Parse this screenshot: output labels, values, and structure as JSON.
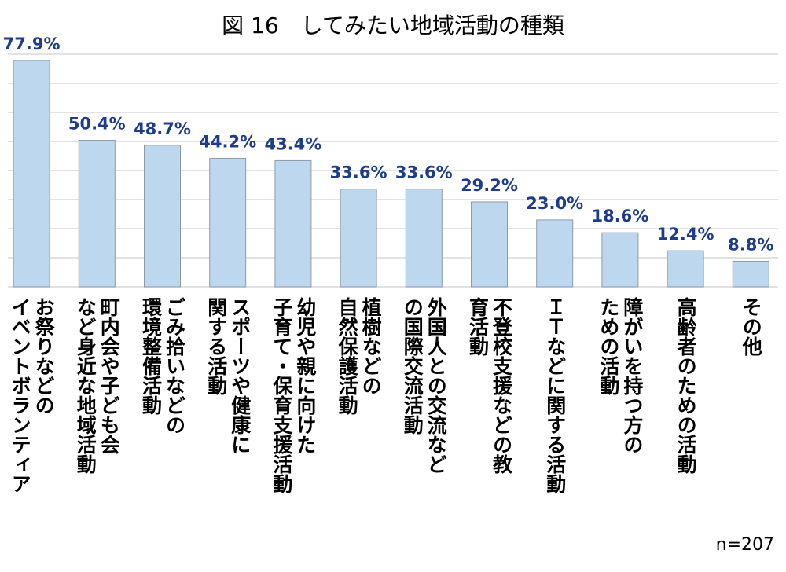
{
  "chart_data": {
    "type": "bar",
    "title": "図 16　してみたい地域活動の種類",
    "note": "n=207",
    "categories": [
      "お祭りなどの\nイベントボランティア",
      "町内会や子ども会\nなど身近な地域活動",
      "ごみ拾いなどの\n環境整備活動",
      "スポーツや健康に\n関する活動",
      "幼児や親に向けた\n子育て・保育支援活動",
      "植樹などの\n自然保護活動",
      "外国人との交流など\nの国際交流活動",
      "不登校支援などの教\n育活動",
      "ＩＴなどに関する活動",
      "障がいを持つ方の\nための活動",
      "高齢者のための活動",
      "その他"
    ],
    "values": [
      77.9,
      50.4,
      48.7,
      44.2,
      43.4,
      33.6,
      33.6,
      29.2,
      23.0,
      18.6,
      12.4,
      8.8
    ],
    "value_labels": [
      "77.9%",
      "50.4%",
      "48.7%",
      "44.2%",
      "43.4%",
      "33.6%",
      "33.6%",
      "29.2%",
      "23.0%",
      "18.6%",
      "12.4%",
      "8.8%"
    ],
    "color": "#bdd7ee",
    "ylim": [
      0,
      80
    ],
    "yticks": [
      0,
      10,
      20,
      30,
      40,
      50,
      60,
      70,
      80
    ],
    "grid": true
  }
}
